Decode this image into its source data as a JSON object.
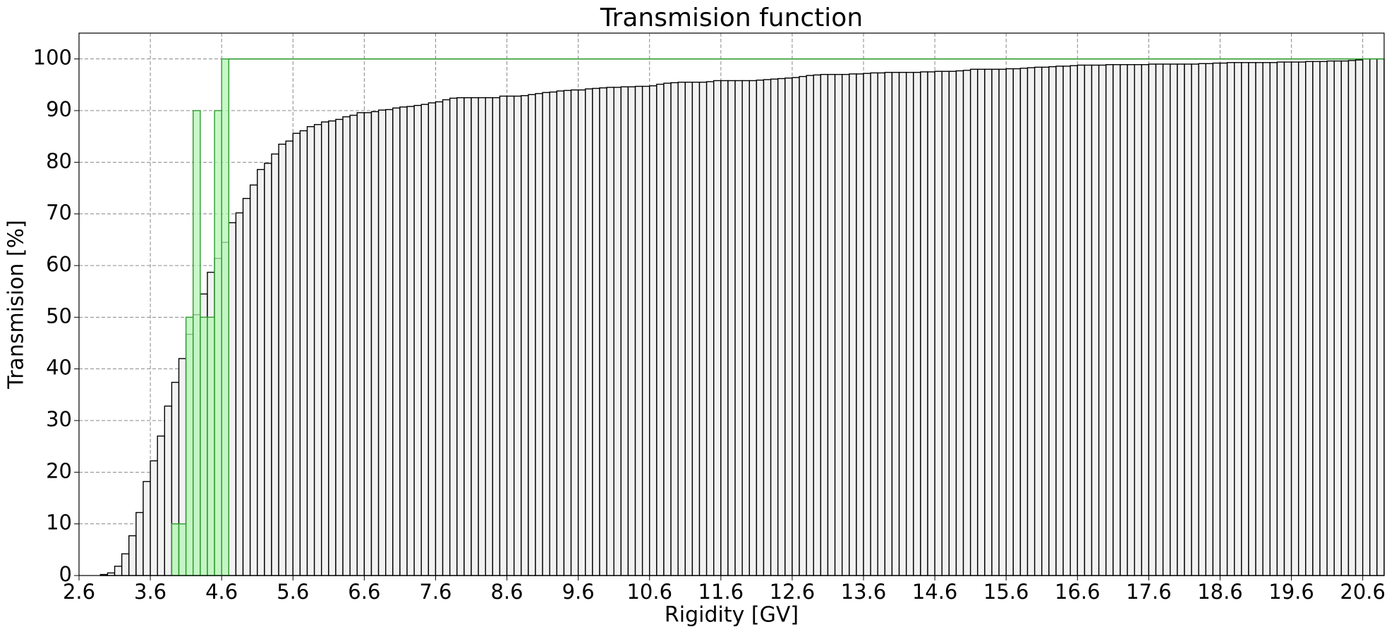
{
  "chart_data": {
    "type": "histogram",
    "title": "Transmision function",
    "xlabel": "Rigidity [GV]",
    "ylabel": "Transmision [%]",
    "xlim": [
      2.6,
      20.9
    ],
    "ylim": [
      0,
      105
    ],
    "xticks": [
      2.6,
      3.6,
      4.6,
      5.6,
      6.6,
      7.6,
      8.6,
      9.6,
      10.6,
      11.6,
      12.6,
      13.6,
      14.6,
      15.6,
      16.6,
      17.6,
      18.6,
      19.6,
      20.6
    ],
    "yticks": [
      0,
      10,
      20,
      30,
      40,
      50,
      60,
      70,
      80,
      90,
      100
    ],
    "grid": true,
    "series": [
      {
        "color": "#f2f2f2",
        "edgecolor": "#000000",
        "bins": [
          2.6,
          2.7,
          2.8,
          2.9,
          3.0,
          3.1,
          3.2,
          3.3,
          3.4,
          3.5,
          3.6,
          3.7,
          3.8,
          3.9,
          4.0,
          4.1,
          4.2,
          4.3,
          4.4,
          4.5,
          4.6,
          4.7,
          4.8,
          4.9,
          5.0,
          5.1,
          5.2,
          5.3,
          5.4,
          5.5,
          5.6,
          5.7,
          5.8,
          5.9,
          6.0,
          6.1,
          6.2,
          6.3,
          6.4,
          6.5,
          6.6,
          6.7,
          6.8,
          6.9,
          7.0,
          7.1,
          7.2,
          7.3,
          7.4,
          7.5,
          7.6,
          7.7,
          7.8,
          7.9,
          8.0,
          8.1,
          8.2,
          8.3,
          8.4,
          8.5,
          8.6,
          8.7,
          8.8,
          8.9,
          9.0,
          9.1,
          9.2,
          9.3,
          9.4,
          9.5,
          9.6,
          9.7,
          9.8,
          9.9,
          10.0,
          10.1,
          10.2,
          10.3,
          10.4,
          10.5,
          10.6,
          10.7,
          10.8,
          10.9,
          11.0,
          11.1,
          11.2,
          11.3,
          11.4,
          11.5,
          11.6,
          11.7,
          11.8,
          11.9,
          12.0,
          12.1,
          12.2,
          12.3,
          12.4,
          12.5,
          12.6,
          12.7,
          12.8,
          12.9,
          13.0,
          13.1,
          13.2,
          13.3,
          13.4,
          13.5,
          13.6,
          13.7,
          13.8,
          13.9,
          14.0,
          14.1,
          14.2,
          14.3,
          14.4,
          14.5,
          14.6,
          14.7,
          14.8,
          14.9,
          15.0,
          15.1,
          15.2,
          15.3,
          15.4,
          15.5,
          15.6,
          15.7,
          15.8,
          15.9,
          16.0,
          16.1,
          16.2,
          16.3,
          16.4,
          16.5,
          16.6,
          16.7,
          16.8,
          16.9,
          17.0,
          17.1,
          17.2,
          17.3,
          17.4,
          17.5,
          17.6,
          17.7,
          17.8,
          17.9,
          18.0,
          18.1,
          18.2,
          18.3,
          18.4,
          18.5,
          18.6,
          18.7,
          18.8,
          18.9,
          19.0,
          19.1,
          19.2,
          19.3,
          19.4,
          19.5,
          19.6,
          19.7,
          19.8,
          19.9,
          20.0,
          20.1,
          20.2,
          20.3,
          20.4,
          20.5,
          20.6,
          20.7,
          20.8,
          20.9
        ],
        "values": [
          0,
          0,
          0,
          0.2,
          0.5,
          1.8,
          4.2,
          7.7,
          12.2,
          18.2,
          22.2,
          27,
          32.8,
          37.4,
          42,
          46.7,
          50.5,
          54.5,
          58.7,
          61.4,
          64.5,
          68.3,
          70.2,
          73,
          75.6,
          78.6,
          79.8,
          81.6,
          83.5,
          84.1,
          85.6,
          86.1,
          86.9,
          87.3,
          87.8,
          88,
          88.3,
          88.8,
          89.1,
          89.6,
          89.6,
          89.8,
          90.1,
          90.2,
          90.5,
          90.7,
          90.8,
          91,
          91.2,
          91.5,
          91.7,
          92.1,
          92.4,
          92.5,
          92.5,
          92.5,
          92.5,
          92.5,
          92.5,
          92.8,
          92.8,
          92.8,
          92.9,
          93.1,
          93.3,
          93.5,
          93.6,
          93.8,
          93.9,
          94,
          94,
          94.2,
          94.3,
          94.4,
          94.5,
          94.5,
          94.6,
          94.6,
          94.7,
          94.7,
          94.8,
          95.1,
          95.3,
          95.4,
          95.5,
          95.5,
          95.5,
          95.5,
          95.6,
          95.8,
          95.8,
          95.8,
          95.8,
          95.8,
          95.8,
          95.9,
          96,
          96.1,
          96.2,
          96.3,
          96.4,
          96.6,
          96.8,
          96.9,
          97,
          97,
          97,
          97,
          97.1,
          97.1,
          97.2,
          97.3,
          97.3,
          97.4,
          97.4,
          97.4,
          97.4,
          97.4,
          97.5,
          97.5,
          97.6,
          97.6,
          97.6,
          97.7,
          97.8,
          98,
          98,
          98,
          98,
          98,
          98.1,
          98.1,
          98.2,
          98.3,
          98.4,
          98.4,
          98.5,
          98.6,
          98.6,
          98.7,
          98.8,
          98.8,
          98.8,
          98.8,
          98.9,
          98.9,
          98.9,
          98.9,
          98.9,
          98.9,
          99,
          99,
          99,
          99,
          99,
          99,
          99,
          99.1,
          99.1,
          99.2,
          99.2,
          99.3,
          99.3,
          99.3,
          99.3,
          99.3,
          99.3,
          99.3,
          99.4,
          99.4,
          99.4,
          99.4,
          99.5,
          99.5,
          99.5,
          99.6,
          99.6,
          99.6,
          99.7,
          99.8,
          100,
          100,
          100
        ]
      },
      {
        "color": "#b4f5b4",
        "edgecolor": "#2e9a2e",
        "bins": [
          3.9,
          4.0,
          4.1,
          4.2,
          4.3,
          4.4,
          4.5,
          4.6,
          4.7
        ],
        "values": [
          10,
          10,
          50,
          90,
          50,
          50,
          90,
          100
        ]
      }
    ],
    "hline": {
      "value": 100,
      "xstart": 4.7,
      "color": "#2e9a2e"
    }
  }
}
